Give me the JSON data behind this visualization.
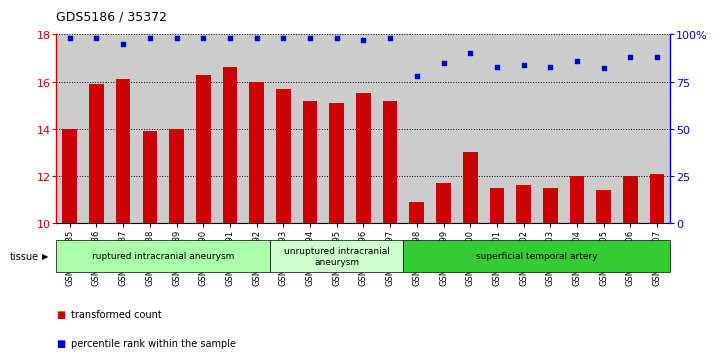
{
  "title": "GDS5186 / 35372",
  "categories": [
    "GSM1306885",
    "GSM1306886",
    "GSM1306887",
    "GSM1306888",
    "GSM1306889",
    "GSM1306890",
    "GSM1306891",
    "GSM1306892",
    "GSM1306893",
    "GSM1306894",
    "GSM1306895",
    "GSM1306896",
    "GSM1306897",
    "GSM1306898",
    "GSM1306899",
    "GSM1306900",
    "GSM1306901",
    "GSM1306902",
    "GSM1306903",
    "GSM1306904",
    "GSM1306905",
    "GSM1306906",
    "GSM1306907"
  ],
  "bar_values": [
    14.0,
    15.9,
    16.1,
    13.9,
    14.0,
    16.3,
    16.6,
    16.0,
    15.7,
    15.2,
    15.1,
    15.5,
    15.2,
    10.9,
    11.7,
    13.0,
    11.5,
    11.6,
    11.5,
    12.0,
    11.4,
    12.0,
    12.1
  ],
  "percentile_values": [
    98,
    98,
    95,
    98,
    98,
    98,
    98,
    98,
    98,
    98,
    98,
    97,
    98,
    78,
    85,
    90,
    83,
    84,
    83,
    86,
    82,
    88,
    88
  ],
  "ylim_left": [
    10,
    18
  ],
  "ylim_right": [
    0,
    100
  ],
  "yticks_left": [
    10,
    12,
    14,
    16,
    18
  ],
  "yticks_right": [
    0,
    25,
    50,
    75,
    100
  ],
  "ytick_labels_right": [
    "0",
    "25",
    "50",
    "75",
    "100%"
  ],
  "bar_color": "#cc0000",
  "dot_color": "#0000cc",
  "groups": [
    {
      "label": "ruptured intracranial aneurysm",
      "start": 0,
      "end": 8,
      "color": "#aaffaa"
    },
    {
      "label": "unruptured intracranial\naneurysm",
      "start": 8,
      "end": 13,
      "color": "#ccffcc"
    },
    {
      "label": "superficial temporal artery",
      "start": 13,
      "end": 23,
      "color": "#33cc33"
    }
  ],
  "plot_bg": "#cccccc",
  "title_fontsize": 9,
  "tick_fontsize": 6,
  "bar_width": 0.55
}
